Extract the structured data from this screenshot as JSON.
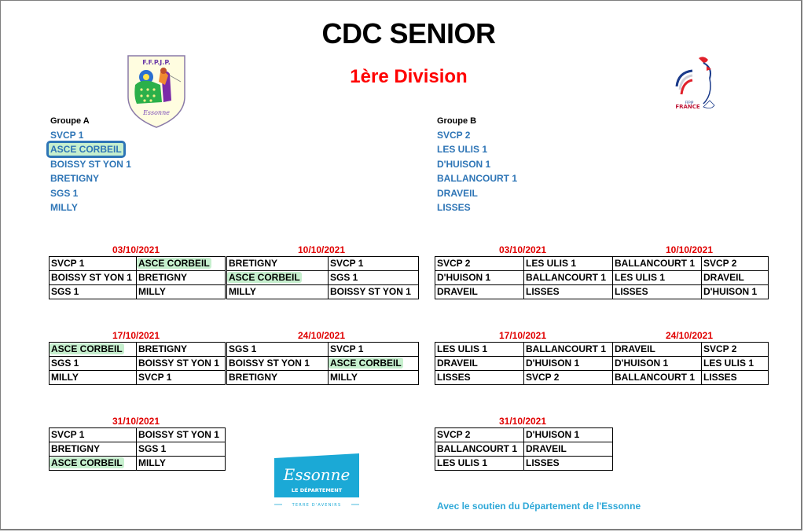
{
  "header": {
    "title": "CDC SENIOR",
    "subtitle": "1ère Division"
  },
  "logos": {
    "left": {
      "name": "ffpjp-essonne-logo",
      "text": "F.F.P.J.P.",
      "signature": "Essonne"
    },
    "right": {
      "name": "ffpjp-france-rooster-logo",
      "text": "FRANCE"
    },
    "bottom": {
      "name": "essonne-departement-logo",
      "script": "Essonne",
      "line1": "LE DÉPARTEMENT",
      "line2": "TERRE D'AVENIRS"
    }
  },
  "groups": {
    "a": {
      "label": "Groupe A",
      "teams": [
        "SVCP 1",
        "ASCE CORBEIL",
        "BOISSY ST YON 1",
        "BRETIGNY",
        "SGS 1",
        "MILLY"
      ],
      "selected_team": "ASCE CORBEIL"
    },
    "b": {
      "label": "Groupe B",
      "teams": [
        "SVCP 2",
        "LES ULIS 1",
        "D'HUISON 1",
        "BALLANCOURT 1",
        "DRAVEIL",
        "LISSES"
      ]
    }
  },
  "fixtures": {
    "a": [
      {
        "date": "03/10/2021",
        "rows": [
          [
            "SVCP 1",
            "ASCE CORBEIL"
          ],
          [
            "BOISSY ST YON 1",
            "BRETIGNY"
          ],
          [
            "SGS 1",
            "MILLY"
          ]
        ]
      },
      {
        "date": "10/10/2021",
        "rows": [
          [
            "BRETIGNY",
            "SVCP 1"
          ],
          [
            "ASCE CORBEIL",
            "SGS 1"
          ],
          [
            "MILLY",
            "BOISSY ST YON 1"
          ]
        ]
      },
      {
        "date": "17/10/2021",
        "rows": [
          [
            "ASCE CORBEIL",
            "BRETIGNY"
          ],
          [
            "SGS 1",
            "BOISSY ST YON 1"
          ],
          [
            "MILLY",
            "SVCP 1"
          ]
        ]
      },
      {
        "date": "24/10/2021",
        "rows": [
          [
            "SGS 1",
            "SVCP 1"
          ],
          [
            "BOISSY ST YON 1",
            "ASCE CORBEIL"
          ],
          [
            "BRETIGNY",
            "MILLY"
          ]
        ]
      },
      {
        "date": "31/10/2021",
        "rows": [
          [
            "SVCP 1",
            "BOISSY ST YON 1"
          ],
          [
            "BRETIGNY",
            "SGS 1"
          ],
          [
            "ASCE CORBEIL",
            "MILLY"
          ]
        ]
      }
    ],
    "b": [
      {
        "date": "03/10/2021",
        "rows": [
          [
            "SVCP 2",
            "LES ULIS 1"
          ],
          [
            "D'HUISON 1",
            "BALLANCOURT 1"
          ],
          [
            "DRAVEIL",
            "LISSES"
          ]
        ]
      },
      {
        "date": "10/10/2021",
        "rows": [
          [
            "BALLANCOURT 1",
            "SVCP 2"
          ],
          [
            "LES ULIS 1",
            "DRAVEIL"
          ],
          [
            "LISSES",
            "D'HUISON 1"
          ]
        ]
      },
      {
        "date": "17/10/2021",
        "rows": [
          [
            "LES ULIS 1",
            "BALLANCOURT 1"
          ],
          [
            "DRAVEIL",
            "D'HUISON 1"
          ],
          [
            "LISSES",
            "SVCP 2"
          ]
        ]
      },
      {
        "date": "24/10/2021",
        "rows": [
          [
            "DRAVEIL",
            "SVCP 2"
          ],
          [
            "D'HUISON 1",
            "LES ULIS 1"
          ],
          [
            "BALLANCOURT 1",
            "LISSES"
          ]
        ]
      },
      {
        "date": "31/10/2021",
        "rows": [
          [
            "SVCP 2",
            "D'HUISON 1"
          ],
          [
            "BALLANCOURT 1",
            "DRAVEIL"
          ],
          [
            "LES ULIS 1",
            "LISSES"
          ]
        ]
      }
    ]
  },
  "footer": {
    "support_text": "Avec le soutien du Département de l'Essonne"
  },
  "colors": {
    "title": "#000000",
    "subtitle": "#ff0000",
    "team_blue": "#2e75b6",
    "date_red": "#e00000",
    "highlight_green": "#c6efce",
    "footer_cyan": "#2ea8d8",
    "essonne_cyan": "#1ba9d6"
  }
}
